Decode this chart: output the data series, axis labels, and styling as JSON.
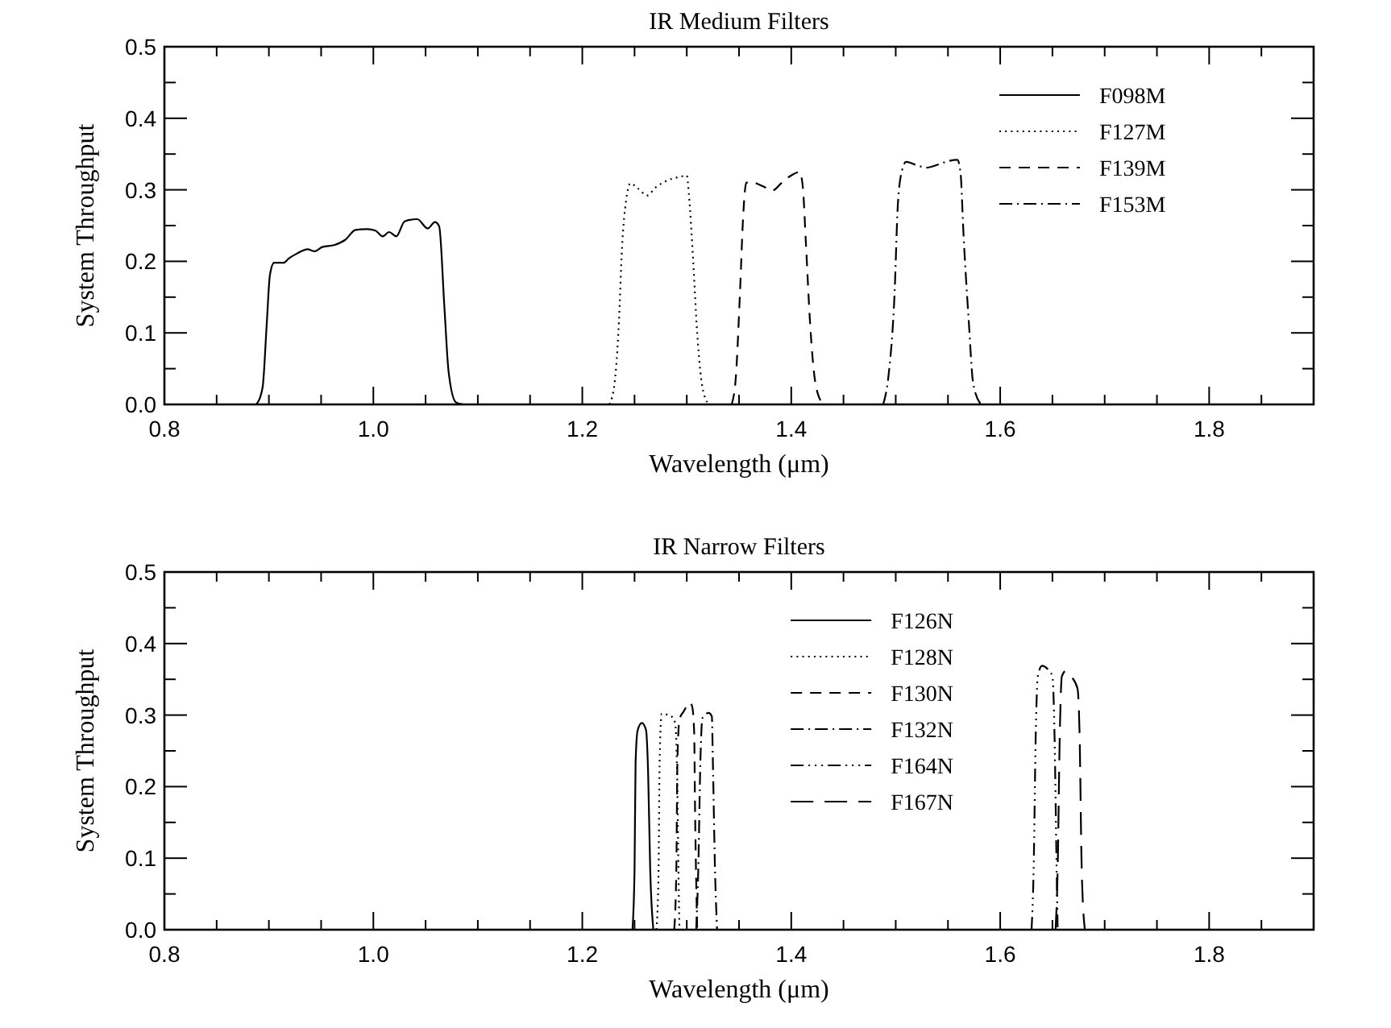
{
  "chart_data": [
    {
      "type": "line",
      "title": "IR Medium Filters",
      "xlabel": "Wavelength (μm)",
      "ylabel": "System Throughput",
      "legend": "top right",
      "xlim": [
        0.8,
        1.9
      ],
      "ylim": [
        0,
        0.5
      ],
      "xticks": [
        0.8,
        {
          "value": 0.85,
          "label": null
        },
        {
          "value": 0.9,
          "label": null
        },
        {
          "value": 0.95,
          "label": null
        },
        {
          "value": 1,
          "label": "1.0"
        },
        {
          "value": 1.05,
          "label": null
        },
        {
          "value": 1.1,
          "label": null
        },
        {
          "value": 1.15,
          "label": null
        },
        1.2,
        {
          "value": 1.25,
          "label": null
        },
        {
          "value": 1.3,
          "label": null
        },
        {
          "value": 1.35,
          "label": null
        },
        1.4,
        {
          "value": 1.45,
          "label": null
        },
        {
          "value": 1.5,
          "label": null
        },
        {
          "value": 1.55,
          "label": null
        },
        1.6,
        {
          "value": 1.65,
          "label": null
        },
        {
          "value": 1.7,
          "label": null
        },
        {
          "value": 1.75,
          "label": null
        },
        1.8,
        {
          "value": 1.85,
          "label": null
        },
        {
          "value": 1.9,
          "label": null
        }
      ],
      "yticks": [
        {
          "value": 0,
          "label": "0.0"
        },
        {
          "value": 0.05,
          "label": null
        },
        0.1,
        {
          "value": 0.15,
          "label": null
        },
        0.2,
        {
          "value": 0.25,
          "label": null
        },
        0.3,
        {
          "value": 0.35,
          "label": null
        },
        0.4,
        {
          "value": 0.45,
          "label": null
        },
        0.5
      ],
      "series": [
        {
          "name": "F098M",
          "color": "#000000",
          "line_style": "solid",
          "x": [
            0.888,
            0.894,
            0.898,
            0.901,
            0.905,
            0.914,
            0.919,
            0.927,
            0.937,
            0.944,
            0.951,
            0.963,
            0.973,
            0.983,
            0.994,
            1.002,
            1.009,
            1.015,
            1.022,
            1.03,
            1.042,
            1.052,
            1.059,
            1.063,
            1.068,
            1.072,
            1.079,
            1.086
          ],
          "values": [
            0,
            0.024,
            0.114,
            0.181,
            0.198,
            0.198,
            0.204,
            0.211,
            0.217,
            0.214,
            0.22,
            0.223,
            0.23,
            0.244,
            0.245,
            0.243,
            0.235,
            0.241,
            0.235,
            0.256,
            0.259,
            0.246,
            0.255,
            0.249,
            0.136,
            0.046,
            0.003,
            0
          ]
        },
        {
          "name": "F127M",
          "color": "#000000",
          "line_style": "dotted",
          "x": [
            1.226,
            1.231,
            1.235,
            1.238,
            1.242,
            1.246,
            1.254,
            1.262,
            1.27,
            1.283,
            1.293,
            1.3,
            1.302,
            1.306,
            1.31,
            1.315,
            1.321
          ],
          "values": [
            0,
            0.031,
            0.114,
            0.219,
            0.286,
            0.309,
            0.301,
            0.292,
            0.303,
            0.314,
            0.318,
            0.32,
            0.294,
            0.204,
            0.099,
            0.024,
            0
          ]
        },
        {
          "name": "F139M",
          "color": "#000000",
          "line_style": "dashed",
          "x": [
            1.343,
            1.347,
            1.351,
            1.354,
            1.357,
            1.363,
            1.373,
            1.382,
            1.391,
            1.401,
            1.408,
            1.411,
            1.414,
            1.418,
            1.423,
            1.43
          ],
          "values": [
            0,
            0.039,
            0.159,
            0.264,
            0.31,
            0.31,
            0.305,
            0.299,
            0.31,
            0.321,
            0.325,
            0.305,
            0.226,
            0.114,
            0.031,
            0.001
          ]
        },
        {
          "name": "F153M",
          "color": "#000000",
          "line_style": "dashdot",
          "x": [
            1.488,
            1.493,
            1.499,
            1.502,
            1.506,
            1.51,
            1.519,
            1.529,
            1.54,
            1.55,
            1.559,
            1.562,
            1.565,
            1.57,
            1.574,
            1.581
          ],
          "values": [
            0,
            0.039,
            0.159,
            0.279,
            0.327,
            0.339,
            0.335,
            0.331,
            0.335,
            0.34,
            0.342,
            0.324,
            0.234,
            0.114,
            0.031,
            0.001
          ]
        }
      ]
    },
    {
      "type": "line",
      "title": "IR Narrow Filters",
      "xlabel": "Wavelength (μm)",
      "ylabel": "System Throughput",
      "legend": "top",
      "xlim": [
        0.8,
        1.9
      ],
      "ylim": [
        0,
        0.5
      ],
      "xticks": [
        0.8,
        {
          "value": 0.85,
          "label": null
        },
        {
          "value": 0.9,
          "label": null
        },
        {
          "value": 0.95,
          "label": null
        },
        {
          "value": 1,
          "label": "1.0"
        },
        {
          "value": 1.05,
          "label": null
        },
        {
          "value": 1.1,
          "label": null
        },
        {
          "value": 1.15,
          "label": null
        },
        1.2,
        {
          "value": 1.25,
          "label": null
        },
        {
          "value": 1.3,
          "label": null
        },
        {
          "value": 1.35,
          "label": null
        },
        1.4,
        {
          "value": 1.45,
          "label": null
        },
        {
          "value": 1.5,
          "label": null
        },
        {
          "value": 1.55,
          "label": null
        },
        1.6,
        {
          "value": 1.65,
          "label": null
        },
        {
          "value": 1.7,
          "label": null
        },
        {
          "value": 1.75,
          "label": null
        },
        1.8,
        {
          "value": 1.85,
          "label": null
        },
        {
          "value": 1.9,
          "label": null
        }
      ],
      "yticks": [
        {
          "value": 0,
          "label": "0.0"
        },
        {
          "value": 0.05,
          "label": null
        },
        0.1,
        {
          "value": 0.15,
          "label": null
        },
        0.2,
        {
          "value": 0.25,
          "label": null
        },
        0.3,
        {
          "value": 0.35,
          "label": null
        },
        0.4,
        {
          "value": 0.45,
          "label": null
        },
        0.5
      ],
      "series": [
        {
          "name": "F126N",
          "color": "#000000",
          "line_style": "solid",
          "x": [
            1.248,
            1.25,
            1.251,
            1.253,
            1.257,
            1.261,
            1.263,
            1.265,
            1.268
          ],
          "values": [
            0,
            0.084,
            0.234,
            0.279,
            0.289,
            0.279,
            0.219,
            0.084,
            0
          ]
        },
        {
          "name": "F128N",
          "color": "#000000",
          "line_style": "dotted",
          "x": [
            1.271,
            1.273,
            1.274,
            1.276,
            1.282,
            1.287,
            1.289,
            1.291,
            1.292,
            1.293
          ],
          "values": [
            0,
            0.084,
            0.234,
            0.302,
            0.3,
            0.296,
            0.287,
            0.197,
            0.084,
            0
          ]
        },
        {
          "name": "F130N",
          "color": "#000000",
          "line_style": "dashed",
          "x": [
            1.288,
            1.29,
            1.291,
            1.293,
            1.297,
            1.303,
            1.305,
            1.307,
            1.308,
            1.31
          ],
          "values": [
            0,
            0.084,
            0.234,
            0.294,
            0.305,
            0.317,
            0.313,
            0.279,
            0.159,
            0
          ]
        },
        {
          "name": "F132N",
          "color": "#000000",
          "line_style": "dashdot",
          "x": [
            1.309,
            1.311,
            1.313,
            1.315,
            1.321,
            1.324,
            1.325,
            1.327,
            1.329
          ],
          "values": [
            0,
            0.084,
            0.234,
            0.296,
            0.303,
            0.298,
            0.234,
            0.084,
            0
          ]
        },
        {
          "name": "F164N",
          "color": "#000000",
          "line_style": "dashdotdotdot",
          "x": [
            1.63,
            1.632,
            1.634,
            1.636,
            1.64,
            1.645,
            1.65,
            1.652,
            1.654,
            1.655
          ],
          "values": [
            0,
            0.084,
            0.272,
            0.354,
            0.369,
            0.365,
            0.354,
            0.272,
            0.084,
            0
          ]
        },
        {
          "name": "F167N",
          "color": "#000000",
          "line_style": "longdash",
          "x": [
            1.653,
            1.655,
            1.657,
            1.659,
            1.663,
            1.668,
            1.674,
            1.676,
            1.678,
            1.681
          ],
          "values": [
            0,
            0.084,
            0.272,
            0.354,
            0.362,
            0.354,
            0.337,
            0.272,
            0.084,
            0
          ]
        }
      ]
    }
  ]
}
